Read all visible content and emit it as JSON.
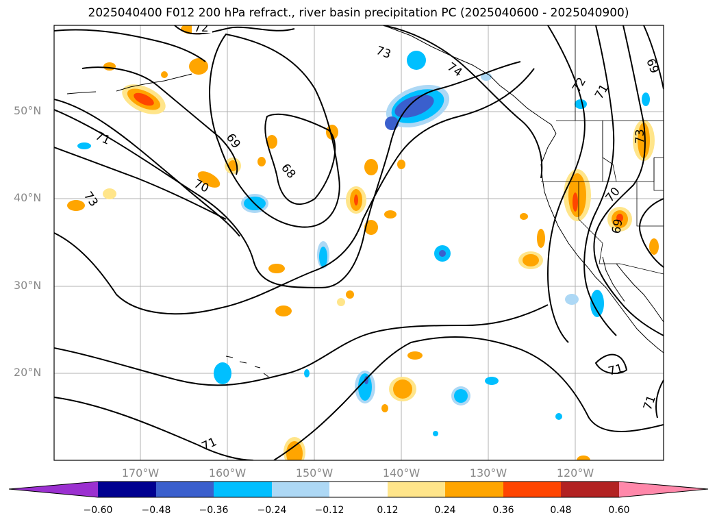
{
  "title": "2025040400 F012 200 hPa refract., river basin precipitation PC (2025040600 - 2025040900)",
  "lat_labels": [
    "50°N",
    "40°N",
    "30°N",
    "20°N"
  ],
  "lon_labels": [
    "170°W",
    "160°W",
    "150°W",
    "140°W",
    "130°W",
    "120°W"
  ],
  "contour_labels": [
    "72",
    "73",
    "74",
    "73",
    "71",
    "69",
    "68",
    "70",
    "71",
    "69",
    "70",
    "69",
    "71",
    "71",
    "71",
    "72",
    "73"
  ],
  "colorbar": {
    "colors": [
      "#9b30d0",
      "#000090",
      "#3a5fcd",
      "#00bfff",
      "#add8f5",
      "#ffffff",
      "#ffe58a",
      "#ffa500",
      "#ff4500",
      "#b22222",
      "#ff88aa"
    ],
    "ticks": [
      "−0.60",
      "−0.48",
      "−0.36",
      "−0.24",
      "−0.12",
      "0.12",
      "0.24",
      "0.36",
      "0.48",
      "0.60"
    ]
  }
}
